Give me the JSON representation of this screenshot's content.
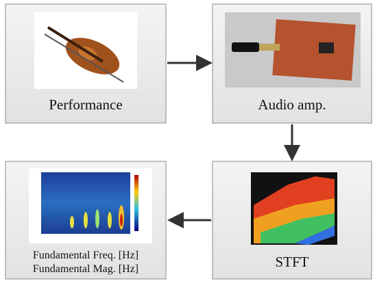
{
  "nodes": [
    {
      "label": "Performance"
    },
    {
      "label": "Audio amp."
    },
    {
      "label": "STFT"
    },
    {
      "lines": [
        "Fundamental Freq. [Hz]",
        "Fundamental Mag. [Hz]"
      ]
    }
  ]
}
